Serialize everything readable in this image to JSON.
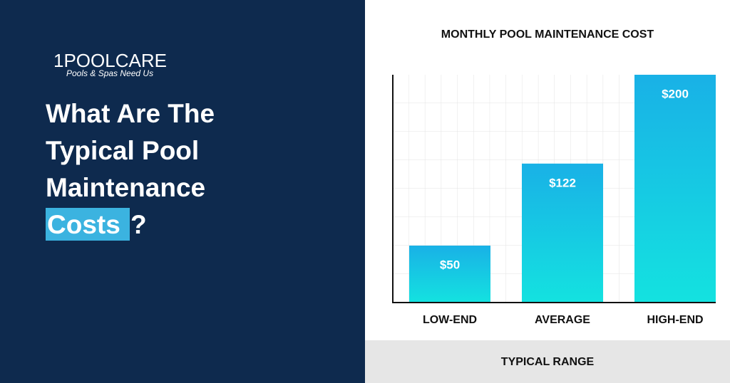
{
  "left": {
    "logo": {
      "name": "1POOLCARE",
      "tagline": "Pools & Spas Need Us"
    },
    "headline": {
      "lines": [
        "What Are The",
        "Typical Pool",
        "Maintenance"
      ],
      "highlight": "Costs",
      "end": "?"
    }
  },
  "chart_data": {
    "type": "bar",
    "title": "MONTHLY POOL MAINTENANCE COST",
    "x_label": "TYPICAL RANGE",
    "categories": [
      "LOW-END",
      "AVERAGE",
      "HIGH-END"
    ],
    "values": [
      50,
      122,
      200
    ],
    "value_labels": [
      "$50",
      "$122",
      "$200"
    ],
    "ylim": [
      0,
      200
    ],
    "grid": true
  }
}
